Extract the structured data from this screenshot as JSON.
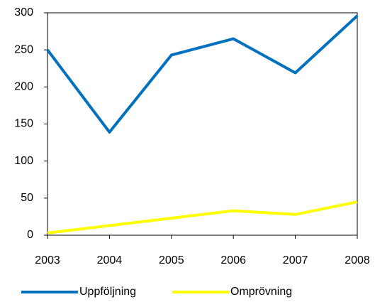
{
  "chart_data": {
    "type": "line",
    "x": [
      2003,
      2004,
      2005,
      2006,
      2007,
      2008
    ],
    "xlim": [
      2003,
      2008
    ],
    "xticks": [
      2003,
      2004,
      2005,
      2006,
      2007,
      2008
    ],
    "ylim": [
      0,
      300
    ],
    "yticks": [
      0,
      50,
      100,
      150,
      200,
      250,
      300
    ],
    "series": [
      {
        "name": "Uppföljning",
        "color": "#0070c0",
        "values": [
          250,
          139,
          243,
          265,
          219,
          296
        ]
      },
      {
        "name": "Omprövning",
        "color": "#ffff00",
        "values": [
          3,
          13,
          23,
          33,
          28,
          45
        ]
      }
    ],
    "legend": "bottom"
  }
}
